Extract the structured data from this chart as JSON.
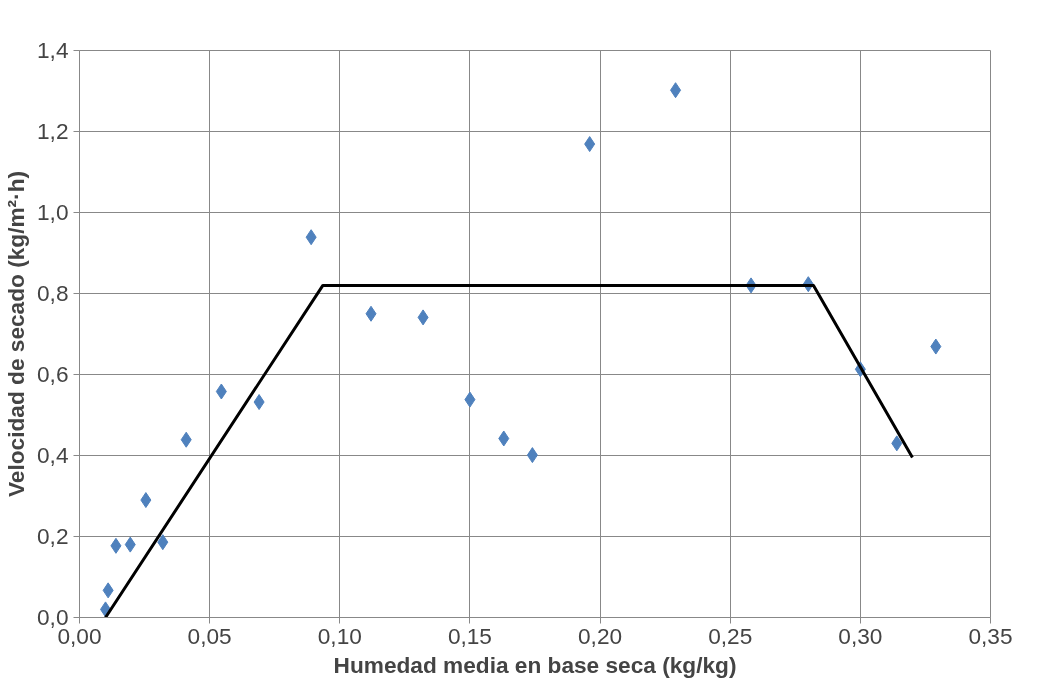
{
  "chart_data": {
    "type": "scatter",
    "xlabel": "Humedad media en base seca (kg/kg)",
    "ylabel": "Velocidad de secado (kg/m²·h)",
    "grid": true,
    "xlim": [
      0,
      0.35
    ],
    "ylim": [
      0,
      1.4
    ],
    "xticks": [
      {
        "value": 0,
        "label": "0,00"
      },
      {
        "value": 0.05,
        "label": "0,05"
      },
      {
        "value": 0.1,
        "label": "0,10"
      },
      {
        "value": 0.15,
        "label": "0,15"
      },
      {
        "value": 0.2,
        "label": "0,20"
      },
      {
        "value": 0.25,
        "label": "0,25"
      },
      {
        "value": 0.3,
        "label": "0,30"
      },
      {
        "value": 0.35,
        "label": "0,35"
      }
    ],
    "yticks": [
      {
        "value": 0,
        "label": "0,0"
      },
      {
        "value": 0.2,
        "label": "0,2"
      },
      {
        "value": 0.4,
        "label": "0,4"
      },
      {
        "value": 0.6,
        "label": "0,6"
      },
      {
        "value": 0.8,
        "label": "0,8"
      },
      {
        "value": 1.0,
        "label": "1,0"
      },
      {
        "value": 1.2,
        "label": "1,2"
      },
      {
        "value": 1.4,
        "label": "1,4"
      }
    ],
    "series": [
      {
        "color": "#4f81bd",
        "marker": "diamond",
        "x": [
          0.01,
          0.011,
          0.014,
          0.0195,
          0.0255,
          0.032,
          0.041,
          0.0545,
          0.069,
          0.089,
          0.112,
          0.132,
          0.15,
          0.163,
          0.174,
          0.196,
          0.229,
          0.258,
          0.28,
          0.3,
          0.314,
          0.329
        ],
        "values": [
          0.02,
          0.067,
          0.177,
          0.18,
          0.29,
          0.186,
          0.439,
          0.558,
          0.532,
          0.939,
          0.75,
          0.741,
          0.538,
          0.442,
          0.401,
          1.169,
          1.302,
          0.82,
          0.823,
          0.613,
          0.43,
          0.669
        ]
      },
      {
        "type": "line",
        "color": "#000000",
        "line_style": "solid",
        "marker": "none",
        "x": [
          0.01,
          0.0935,
          0.282,
          0.32
        ],
        "values": [
          0,
          0.82,
          0.82,
          0.395
        ]
      }
    ]
  }
}
